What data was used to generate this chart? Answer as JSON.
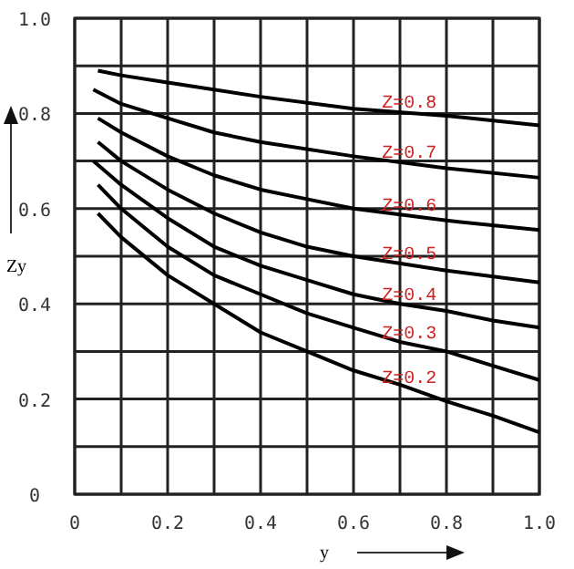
{
  "chart_data": {
    "type": "line",
    "xlabel": "y",
    "ylabel": "Zy",
    "xlim": [
      0,
      1.0
    ],
    "ylim": [
      0,
      1.0
    ],
    "xticks": [
      0,
      {
        "value": 0.1,
        "label": null
      },
      0.2,
      {
        "value": 0.3,
        "label": null
      },
      0.4,
      {
        "value": 0.5,
        "label": null
      },
      0.6,
      {
        "value": 0.7,
        "label": null
      },
      0.8,
      {
        "value": 0.9,
        "label": null
      },
      {
        "value": 1.0,
        "label": "1.0"
      }
    ],
    "yticks": [
      0,
      {
        "value": 0.1,
        "label": null
      },
      0.2,
      {
        "value": 0.3,
        "label": null
      },
      0.4,
      {
        "value": 0.5,
        "label": null
      },
      0.6,
      {
        "value": 0.7,
        "label": null
      },
      0.8,
      {
        "value": 0.9,
        "label": null
      },
      {
        "value": 1.0,
        "label": "1.0"
      }
    ],
    "grid": true,
    "legend": false,
    "marker": "none",
    "line_style": "solid",
    "series": [
      {
        "name": "Z=0.8",
        "color": "#000000",
        "x": [
          0.05,
          0.1,
          0.2,
          0.4,
          0.6,
          0.8,
          1.0
        ],
        "values": [
          0.89,
          0.88,
          0.865,
          0.835,
          0.81,
          0.795,
          0.775
        ]
      },
      {
        "name": "Z=0.7",
        "color": "#000000",
        "x": [
          0.04,
          0.1,
          0.2,
          0.3,
          0.4,
          0.6,
          0.8,
          1.0
        ],
        "values": [
          0.85,
          0.82,
          0.79,
          0.76,
          0.74,
          0.71,
          0.685,
          0.665
        ]
      },
      {
        "name": "Z=0.6",
        "color": "#000000",
        "x": [
          0.05,
          0.1,
          0.2,
          0.3,
          0.4,
          0.5,
          0.6,
          0.8,
          1.0
        ],
        "values": [
          0.79,
          0.76,
          0.71,
          0.67,
          0.64,
          0.62,
          0.6,
          0.575,
          0.555
        ]
      },
      {
        "name": "Z=0.5",
        "color": "#000000",
        "x": [
          0.05,
          0.1,
          0.2,
          0.3,
          0.4,
          0.5,
          0.6,
          0.8,
          1.0
        ],
        "values": [
          0.74,
          0.7,
          0.64,
          0.59,
          0.55,
          0.52,
          0.5,
          0.47,
          0.445
        ]
      },
      {
        "name": "Z=0.4",
        "color": "#000000",
        "x": [
          0.04,
          0.1,
          0.2,
          0.3,
          0.4,
          0.5,
          0.6,
          0.7,
          0.8,
          0.9,
          1.0
        ],
        "values": [
          0.7,
          0.65,
          0.58,
          0.52,
          0.48,
          0.45,
          0.42,
          0.4,
          0.385,
          0.365,
          0.35
        ]
      },
      {
        "name": "Z=0.3",
        "color": "#000000",
        "x": [
          0.05,
          0.1,
          0.2,
          0.3,
          0.4,
          0.5,
          0.6,
          0.7,
          0.8,
          0.9,
          1.0
        ],
        "values": [
          0.65,
          0.6,
          0.52,
          0.46,
          0.42,
          0.38,
          0.35,
          0.32,
          0.3,
          0.27,
          0.24
        ]
      },
      {
        "name": "Z=0.2",
        "color": "#000000",
        "x": [
          0.05,
          0.1,
          0.2,
          0.3,
          0.4,
          0.5,
          0.6,
          0.7,
          0.8,
          0.9,
          1.0
        ],
        "values": [
          0.59,
          0.54,
          0.46,
          0.4,
          0.34,
          0.3,
          0.26,
          0.23,
          0.195,
          0.165,
          0.13
        ]
      }
    ]
  }
}
